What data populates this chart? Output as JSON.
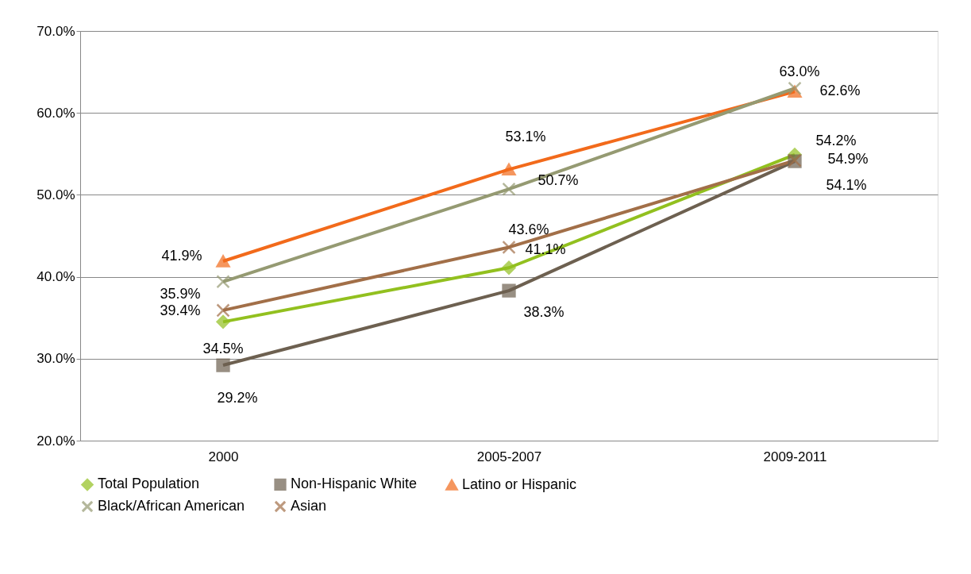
{
  "chart_data": {
    "type": "line",
    "categories": [
      "2000",
      "2005-2007",
      "2009-2011"
    ],
    "ylim": [
      20,
      70
    ],
    "yticks": [
      {
        "value": 20,
        "label": "20.0%"
      },
      {
        "value": 30,
        "label": "30.0%"
      },
      {
        "value": 40,
        "label": "40.0%"
      },
      {
        "value": 50,
        "label": "50.0%"
      },
      {
        "value": 60,
        "label": "60.0%"
      },
      {
        "value": 70,
        "label": "70.0%"
      }
    ],
    "grid": "y",
    "legend": "bottom",
    "series": [
      {
        "name": "Total Population",
        "color": "#92c01f",
        "marker": "diamond",
        "values": [
          34.5,
          41.1,
          54.9
        ],
        "value_labels": [
          "34.5%",
          "41.1%",
          "54.9%"
        ]
      },
      {
        "name": "Non-Hispanic White",
        "color": "#6d6050",
        "marker": "square",
        "values": [
          29.2,
          38.3,
          54.1
        ],
        "value_labels": [
          "29.2%",
          "38.3%",
          "54.1%"
        ]
      },
      {
        "name": "Latino or Hispanic",
        "color": "#f26a1b",
        "marker": "triangle",
        "values": [
          41.9,
          53.1,
          62.6
        ],
        "value_labels": [
          "41.9%",
          "53.1%",
          "62.6%"
        ]
      },
      {
        "name": "Black/African American",
        "color": "#959a72",
        "marker": "cross",
        "values": [
          39.4,
          50.7,
          63.0
        ],
        "value_labels": [
          "39.4%",
          "50.7%",
          "63.0%"
        ]
      },
      {
        "name": "Asian",
        "color": "#a26f48",
        "marker": "cross",
        "values": [
          35.9,
          43.6,
          54.2
        ],
        "value_labels": [
          "35.9%",
          "43.6%",
          "54.2%"
        ]
      }
    ]
  }
}
